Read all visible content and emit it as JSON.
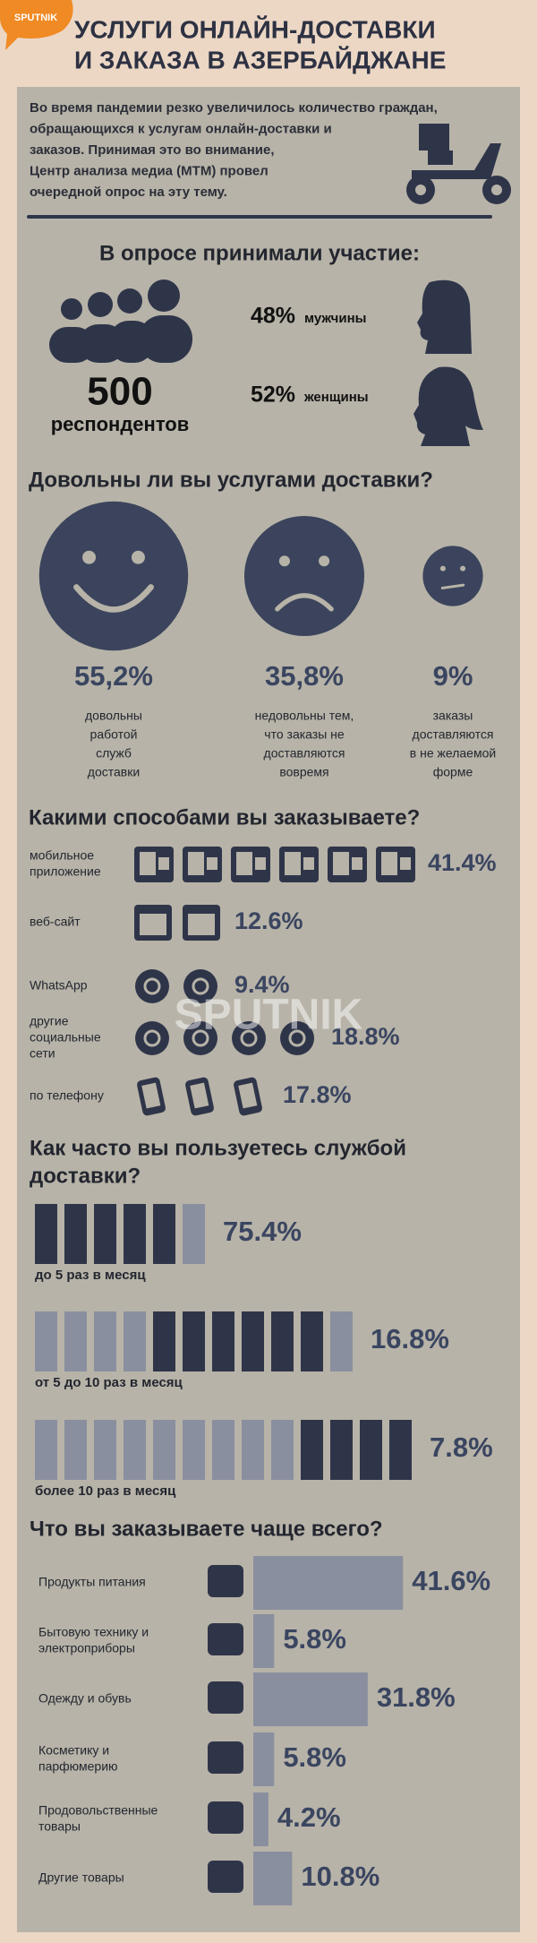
{
  "logo": "SPUTNIK",
  "header": {
    "title": [
      "УСЛУГИ ОНЛАЙН-ДОСТАВКИ",
      "И ЗАКАЗА В АЗЕРБАЙДЖАНЕ"
    ]
  },
  "intro": [
    "Во время пандемии резко увеличилось количество граждан,",
    "обращающихся к услугам онлайн-доставки и",
    "заказов. Принимая это во внимание,",
    "Центр анализа медиа (МТМ) провел",
    "очередной опрос на эту тему."
  ],
  "participants": {
    "title": "В опросе принимали участие:",
    "total": {
      "value": 500,
      "label": "респондентов"
    },
    "men": {
      "value": 48,
      "value_label": "48%",
      "label": "мужчины"
    },
    "women": {
      "value": 52,
      "value_label": "52%",
      "label": "женщины"
    }
  },
  "satisfaction": {
    "title": "Довольны ли вы услугами доставки?",
    "items": [
      {
        "value": 55.2,
        "value_label": "55,2%",
        "label": [
          "довольны",
          "работой",
          "служб",
          "доставки"
        ]
      },
      {
        "value": 35.8,
        "value_label": "35,8%",
        "label": [
          "недовольны тем,",
          "что заказы не",
          "доставляются",
          "вовремя"
        ]
      },
      {
        "value": 9,
        "value_label": "9%",
        "label": [
          "заказы",
          "доставляются",
          "в не желаемой",
          "форме"
        ]
      }
    ]
  },
  "methods": {
    "title": "Какими способами вы заказываете?",
    "items": [
      {
        "label": [
          "мобильное",
          "приложение"
        ],
        "value": 41.4,
        "value_label": "41.4%",
        "icons": 6
      },
      {
        "label": [
          "веб-сайт"
        ],
        "value": 12.6,
        "value_label": "12.6%",
        "icons": 2
      },
      {
        "label": [
          "WhatsApp"
        ],
        "value": 9.4,
        "value_label": "9.4%",
        "icons": 2
      },
      {
        "label": [
          "другие",
          "социальные",
          "сети"
        ],
        "value": 18.8,
        "value_label": "18.8%",
        "icons": 4
      },
      {
        "label": [
          "по телефону"
        ],
        "value": 17.8,
        "value_label": "17.8%",
        "icons": 3
      }
    ]
  },
  "frequency": {
    "title": [
      "Как часто вы пользуетесь службой",
      "доставки?"
    ],
    "items": [
      {
        "label": "до 5 раз в месяц",
        "value": 75.4,
        "value_label": "75.4%",
        "blocks": [
          0,
          5,
          1
        ]
      },
      {
        "label": "от 5 до 10 раз в месяц",
        "value": 16.8,
        "value_label": "16.8%",
        "blocks": [
          4,
          6,
          1
        ]
      },
      {
        "label": "более 10 раз в месяц",
        "value": 7.8,
        "value_label": "7.8%",
        "blocks": [
          9,
          4,
          0
        ]
      }
    ]
  },
  "products": {
    "title": "Что вы заказываете чаще всего?",
    "items": [
      {
        "label": [
          "Продукты питания"
        ],
        "value": 41.6,
        "value_label": "41.6%"
      },
      {
        "label": [
          "Бытовую технику и",
          "электроприборы"
        ],
        "value": 5.8,
        "value_label": "5.8%"
      },
      {
        "label": [
          "Одежду и обувь"
        ],
        "value": 31.8,
        "value_label": "31.8%"
      },
      {
        "label": [
          "Косметику и",
          "парфюмерию"
        ],
        "value": 5.8,
        "value_label": "5.8%"
      },
      {
        "label": [
          "Продовольственные",
          "товары"
        ],
        "value": 4.2,
        "value_label": "4.2%"
      },
      {
        "label": [
          "Другие товары"
        ],
        "value": 10.8,
        "value_label": "10.8%"
      }
    ]
  }
}
